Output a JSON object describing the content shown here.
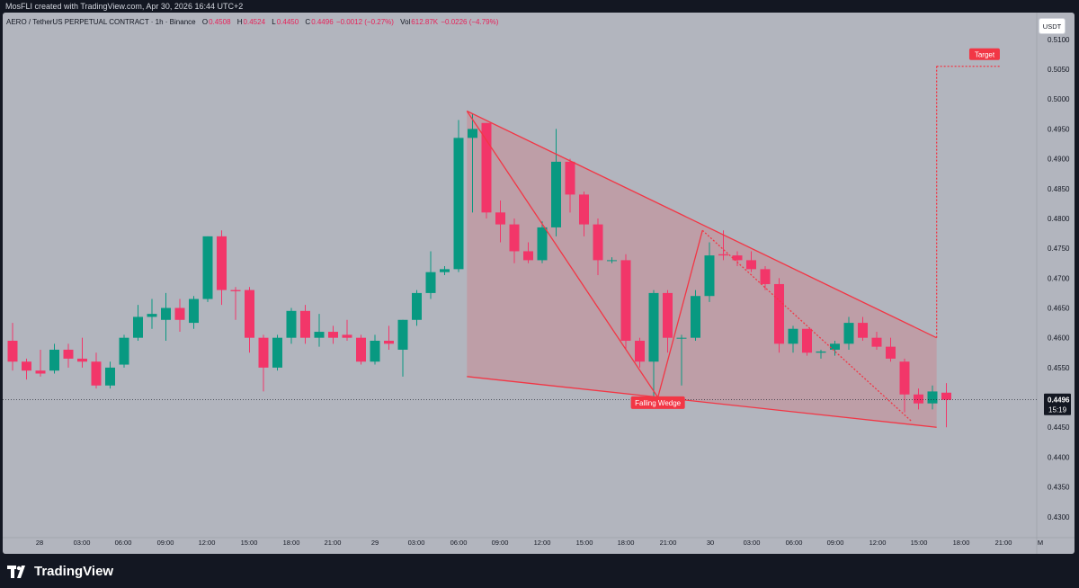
{
  "header": {
    "credit": "MosFLI created with TradingView.com, Apr 30, 2026 16:44 UTC+2"
  },
  "legend": {
    "symbol": "AERO / TetherUS PERPETUAL CONTRACT · 1h · Binance",
    "open_label": "O",
    "open": "0.4508",
    "high_label": "H",
    "high": "0.4524",
    "low_label": "L",
    "low": "0.4450",
    "close_label": "C",
    "close": "0.4496",
    "change": "−0.0012 (−0.27%)",
    "vol_label": "Vol",
    "vol": "612.87K",
    "vol_change": "−0.0226 (−4.79%)"
  },
  "currency_button": "USDT",
  "price_axis": {
    "ticks": [
      "0.5100",
      "0.5050",
      "0.5000",
      "0.4950",
      "0.4900",
      "0.4850",
      "0.4800",
      "0.4750",
      "0.4700",
      "0.4650",
      "0.4600",
      "0.4550",
      "0.4500",
      "0.4450",
      "0.4400",
      "0.4350",
      "0.4300"
    ],
    "last_price": "0.4496",
    "countdown": "15:19"
  },
  "time_axis": {
    "ticks": [
      "28",
      "03:00",
      "06:00",
      "09:00",
      "12:00",
      "15:00",
      "18:00",
      "21:00",
      "29",
      "03:00",
      "06:00",
      "09:00",
      "12:00",
      "15:00",
      "18:00",
      "21:00",
      "30",
      "03:00",
      "06:00",
      "09:00",
      "12:00",
      "15:00",
      "18:00",
      "21:00",
      "M"
    ],
    "tick_x": [
      41,
      88,
      134,
      181,
      227,
      274,
      321,
      367,
      414,
      460,
      507,
      553,
      600,
      647,
      693,
      740,
      787,
      833,
      880,
      926,
      973,
      1019,
      1066,
      1113,
      1154
    ]
  },
  "annotations": {
    "pattern_label": "Falling Wedge",
    "target_label": "Target"
  },
  "brand": {
    "name": "TradingView"
  },
  "colors": {
    "up": "#089981",
    "down": "#f23669",
    "wedge": "#f23645",
    "background": "#b2b5be",
    "dark": "#131722"
  },
  "chart_data": {
    "type": "candlestick",
    "y_range": [
      0.4265,
      0.5145
    ],
    "candles": [
      {
        "o": 0.4595,
        "h": 0.4625,
        "l": 0.4545,
        "c": 0.456
      },
      {
        "o": 0.456,
        "h": 0.4565,
        "l": 0.453,
        "c": 0.4545
      },
      {
        "o": 0.4545,
        "h": 0.458,
        "l": 0.4535,
        "c": 0.454
      },
      {
        "o": 0.4545,
        "h": 0.459,
        "l": 0.454,
        "c": 0.458
      },
      {
        "o": 0.458,
        "h": 0.459,
        "l": 0.455,
        "c": 0.4565
      },
      {
        "o": 0.4565,
        "h": 0.46,
        "l": 0.455,
        "c": 0.456
      },
      {
        "o": 0.456,
        "h": 0.4575,
        "l": 0.4515,
        "c": 0.452
      },
      {
        "o": 0.452,
        "h": 0.456,
        "l": 0.4515,
        "c": 0.455
      },
      {
        "o": 0.4555,
        "h": 0.4605,
        "l": 0.455,
        "c": 0.46
      },
      {
        "o": 0.46,
        "h": 0.4655,
        "l": 0.4595,
        "c": 0.4635
      },
      {
        "o": 0.4635,
        "h": 0.4665,
        "l": 0.4615,
        "c": 0.464
      },
      {
        "o": 0.463,
        "h": 0.4675,
        "l": 0.4595,
        "c": 0.465
      },
      {
        "o": 0.465,
        "h": 0.4665,
        "l": 0.461,
        "c": 0.463
      },
      {
        "o": 0.4625,
        "h": 0.467,
        "l": 0.4615,
        "c": 0.4665
      },
      {
        "o": 0.4665,
        "h": 0.477,
        "l": 0.466,
        "c": 0.477
      },
      {
        "o": 0.477,
        "h": 0.478,
        "l": 0.4655,
        "c": 0.468
      },
      {
        "o": 0.468,
        "h": 0.4685,
        "l": 0.463,
        "c": 0.4678
      },
      {
        "o": 0.468,
        "h": 0.4685,
        "l": 0.4575,
        "c": 0.46
      },
      {
        "o": 0.46,
        "h": 0.4605,
        "l": 0.451,
        "c": 0.455
      },
      {
        "o": 0.455,
        "h": 0.4605,
        "l": 0.4545,
        "c": 0.46
      },
      {
        "o": 0.46,
        "h": 0.465,
        "l": 0.459,
        "c": 0.4645
      },
      {
        "o": 0.4645,
        "h": 0.4655,
        "l": 0.459,
        "c": 0.46
      },
      {
        "o": 0.46,
        "h": 0.464,
        "l": 0.4585,
        "c": 0.461
      },
      {
        "o": 0.461,
        "h": 0.462,
        "l": 0.459,
        "c": 0.46
      },
      {
        "o": 0.4605,
        "h": 0.463,
        "l": 0.4595,
        "c": 0.46
      },
      {
        "o": 0.46,
        "h": 0.4605,
        "l": 0.4555,
        "c": 0.456
      },
      {
        "o": 0.456,
        "h": 0.4605,
        "l": 0.4555,
        "c": 0.4595
      },
      {
        "o": 0.4595,
        "h": 0.462,
        "l": 0.458,
        "c": 0.459
      },
      {
        "o": 0.458,
        "h": 0.463,
        "l": 0.4535,
        "c": 0.463
      },
      {
        "o": 0.463,
        "h": 0.468,
        "l": 0.462,
        "c": 0.4675
      },
      {
        "o": 0.4675,
        "h": 0.4745,
        "l": 0.4665,
        "c": 0.471
      },
      {
        "o": 0.471,
        "h": 0.472,
        "l": 0.4705,
        "c": 0.4715
      },
      {
        "o": 0.4715,
        "h": 0.4965,
        "l": 0.471,
        "c": 0.4935
      },
      {
        "o": 0.4935,
        "h": 0.4975,
        "l": 0.481,
        "c": 0.495
      },
      {
        "o": 0.496,
        "h": 0.496,
        "l": 0.48,
        "c": 0.481
      },
      {
        "o": 0.481,
        "h": 0.483,
        "l": 0.476,
        "c": 0.479
      },
      {
        "o": 0.479,
        "h": 0.48,
        "l": 0.4725,
        "c": 0.4745
      },
      {
        "o": 0.4745,
        "h": 0.476,
        "l": 0.4725,
        "c": 0.473
      },
      {
        "o": 0.473,
        "h": 0.4795,
        "l": 0.4725,
        "c": 0.4785
      },
      {
        "o": 0.4785,
        "h": 0.495,
        "l": 0.477,
        "c": 0.4895
      },
      {
        "o": 0.4895,
        "h": 0.49,
        "l": 0.481,
        "c": 0.484
      },
      {
        "o": 0.484,
        "h": 0.4845,
        "l": 0.477,
        "c": 0.479
      },
      {
        "o": 0.479,
        "h": 0.48,
        "l": 0.4705,
        "c": 0.473
      },
      {
        "o": 0.473,
        "h": 0.4735,
        "l": 0.4725,
        "c": 0.473
      },
      {
        "o": 0.473,
        "h": 0.474,
        "l": 0.458,
        "c": 0.4595
      },
      {
        "o": 0.4595,
        "h": 0.46,
        "l": 0.455,
        "c": 0.456
      },
      {
        "o": 0.456,
        "h": 0.468,
        "l": 0.45,
        "c": 0.4675
      },
      {
        "o": 0.4675,
        "h": 0.468,
        "l": 0.4575,
        "c": 0.46
      },
      {
        "o": 0.46,
        "h": 0.4605,
        "l": 0.452,
        "c": 0.46
      },
      {
        "o": 0.46,
        "h": 0.468,
        "l": 0.4595,
        "c": 0.467
      },
      {
        "o": 0.467,
        "h": 0.476,
        "l": 0.466,
        "c": 0.4738
      },
      {
        "o": 0.474,
        "h": 0.478,
        "l": 0.473,
        "c": 0.4738
      },
      {
        "o": 0.4738,
        "h": 0.4745,
        "l": 0.472,
        "c": 0.473
      },
      {
        "o": 0.473,
        "h": 0.4745,
        "l": 0.471,
        "c": 0.4715
      },
      {
        "o": 0.4715,
        "h": 0.472,
        "l": 0.468,
        "c": 0.469
      },
      {
        "o": 0.469,
        "h": 0.47,
        "l": 0.4575,
        "c": 0.459
      },
      {
        "o": 0.459,
        "h": 0.462,
        "l": 0.4575,
        "c": 0.4615
      },
      {
        "o": 0.4615,
        "h": 0.4615,
        "l": 0.457,
        "c": 0.4575
      },
      {
        "o": 0.4575,
        "h": 0.458,
        "l": 0.4565,
        "c": 0.4577
      },
      {
        "o": 0.458,
        "h": 0.4595,
        "l": 0.457,
        "c": 0.459
      },
      {
        "o": 0.459,
        "h": 0.4635,
        "l": 0.458,
        "c": 0.4625
      },
      {
        "o": 0.4625,
        "h": 0.4635,
        "l": 0.4595,
        "c": 0.46
      },
      {
        "o": 0.46,
        "h": 0.461,
        "l": 0.458,
        "c": 0.4585
      },
      {
        "o": 0.4585,
        "h": 0.46,
        "l": 0.456,
        "c": 0.4565
      },
      {
        "o": 0.456,
        "h": 0.4565,
        "l": 0.4475,
        "c": 0.4505
      },
      {
        "o": 0.4505,
        "h": 0.4515,
        "l": 0.448,
        "c": 0.449
      },
      {
        "o": 0.449,
        "h": 0.452,
        "l": 0.448,
        "c": 0.451
      },
      {
        "o": 0.4508,
        "h": 0.4524,
        "l": 0.445,
        "c": 0.4496
      }
    ],
    "wedge": {
      "upper": [
        {
          "i": 32.6,
          "p": 0.498
        },
        {
          "i": 66.3,
          "p": 0.46
        }
      ],
      "lower": [
        {
          "i": 32.6,
          "p": 0.4535
        },
        {
          "i": 66.3,
          "p": 0.445
        }
      ],
      "zigzag": [
        {
          "i": 32.6,
          "p": 0.498
        },
        {
          "i": 46.3,
          "p": 0.45
        },
        {
          "i": 49.5,
          "p": 0.478
        },
        {
          "i": 64.5,
          "p": 0.446
        }
      ],
      "target_line": [
        {
          "i": 66.3,
          "p": 0.46
        },
        {
          "i": 66.3,
          "p": 0.5055
        },
        {
          "i": 70.9,
          "p": 0.5055
        }
      ]
    }
  }
}
